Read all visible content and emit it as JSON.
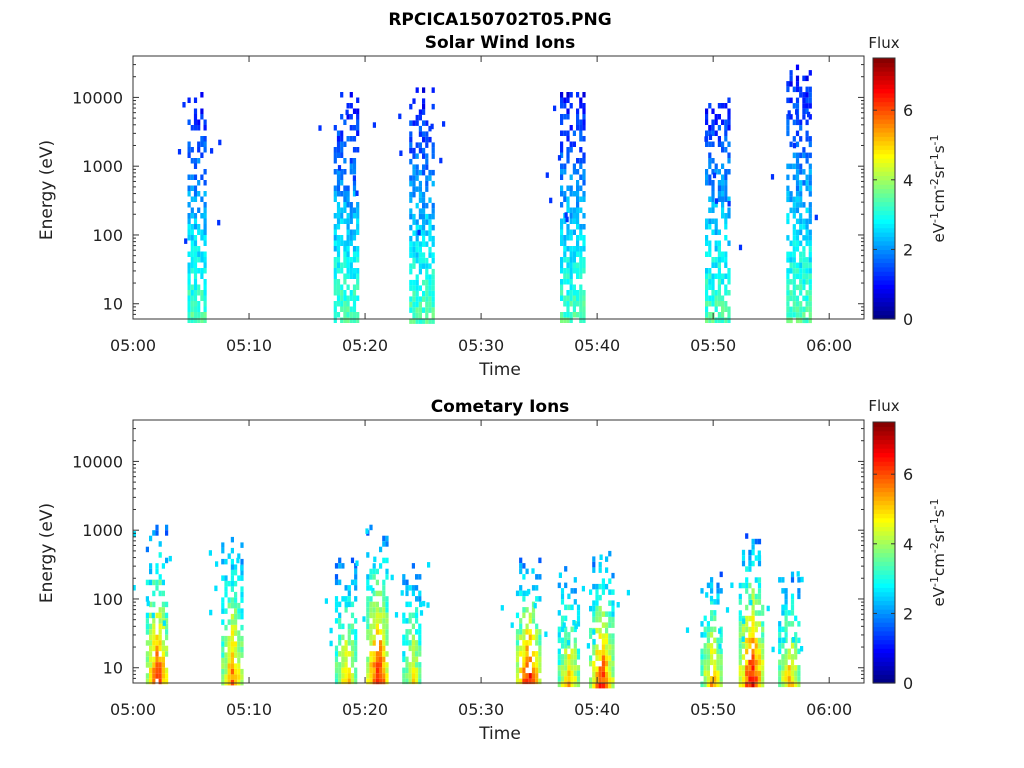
{
  "figure": {
    "title_line1": "RPCICA150702T05.PNG"
  },
  "chart_data": [
    {
      "type": "heatmap",
      "title": "Solar Wind Ions",
      "xlabel": "Time",
      "ylabel": "Energy (eV)",
      "x_ticks": [
        "05:00",
        "05:10",
        "05:20",
        "05:30",
        "05:40",
        "05:50",
        "06:00"
      ],
      "x_range_minutes": [
        0,
        63
      ],
      "y_scale": "log",
      "y_ticks": [
        "10",
        "100",
        "1000",
        "10000"
      ],
      "y_range": [
        6,
        40000
      ],
      "colorbar": {
        "label_top": "Flux",
        "unit": "eV-1cm-2sr-1s-1",
        "ticks": [
          "0",
          "2",
          "4",
          "6"
        ],
        "range": [
          0,
          7.5
        ],
        "colormap": "jet"
      },
      "bursts": [
        {
          "center_min": 5.5,
          "half_width_min": 0.8,
          "e_low": 6,
          "e_high": 12000,
          "flux": 2.0
        },
        {
          "center_min": 18.3,
          "half_width_min": 1.0,
          "e_low": 6,
          "e_high": 12000,
          "flux": 2.0
        },
        {
          "center_min": 24.8,
          "half_width_min": 1.0,
          "e_low": 6,
          "e_high": 14000,
          "flux": 2.0
        },
        {
          "center_min": 37.8,
          "half_width_min": 1.0,
          "e_low": 6,
          "e_high": 12000,
          "flux": 2.0
        },
        {
          "center_min": 50.3,
          "half_width_min": 1.0,
          "e_low": 6,
          "e_high": 12000,
          "flux": 2.0
        },
        {
          "center_min": 57.3,
          "half_width_min": 1.0,
          "e_low": 6,
          "e_high": 30000,
          "flux": 2.0
        }
      ]
    },
    {
      "type": "heatmap",
      "title": "Cometary Ions",
      "xlabel": "Time",
      "ylabel": "Energy (eV)",
      "x_ticks": [
        "05:00",
        "05:10",
        "05:20",
        "05:30",
        "05:40",
        "05:50",
        "06:00"
      ],
      "x_range_minutes": [
        0,
        63
      ],
      "y_scale": "log",
      "y_ticks": [
        "10",
        "100",
        "1000",
        "10000"
      ],
      "y_range": [
        6,
        40000
      ],
      "colorbar": {
        "label_top": "Flux",
        "unit": "eV-1cm-2sr-1s-1",
        "ticks": [
          "0",
          "2",
          "4",
          "6"
        ],
        "range": [
          0,
          7.5
        ],
        "colormap": "jet"
      },
      "bursts": [
        {
          "center_min": 2.0,
          "half_width_min": 0.9,
          "e_low": 6,
          "e_high": 1200,
          "flux": 6.5
        },
        {
          "center_min": 8.5,
          "half_width_min": 0.9,
          "e_low": 6,
          "e_high": 800,
          "flux": 6.0
        },
        {
          "center_min": 18.3,
          "half_width_min": 0.9,
          "e_low": 6,
          "e_high": 400,
          "flux": 5.5
        },
        {
          "center_min": 21.0,
          "half_width_min": 0.9,
          "e_low": 6,
          "e_high": 1200,
          "flux": 7.0
        },
        {
          "center_min": 24.0,
          "half_width_min": 0.8,
          "e_low": 6,
          "e_high": 400,
          "flux": 5.0
        },
        {
          "center_min": 34.0,
          "half_width_min": 1.0,
          "e_low": 6,
          "e_high": 400,
          "flux": 7.0
        },
        {
          "center_min": 37.5,
          "half_width_min": 0.9,
          "e_low": 6,
          "e_high": 300,
          "flux": 5.5
        },
        {
          "center_min": 40.3,
          "half_width_min": 1.0,
          "e_low": 6,
          "e_high": 500,
          "flux": 6.5
        },
        {
          "center_min": 49.8,
          "half_width_min": 0.9,
          "e_low": 6,
          "e_high": 300,
          "flux": 5.5
        },
        {
          "center_min": 53.2,
          "half_width_min": 1.0,
          "e_low": 6,
          "e_high": 900,
          "flux": 7.0
        },
        {
          "center_min": 56.5,
          "half_width_min": 0.9,
          "e_low": 6,
          "e_high": 300,
          "flux": 5.5
        }
      ]
    }
  ]
}
